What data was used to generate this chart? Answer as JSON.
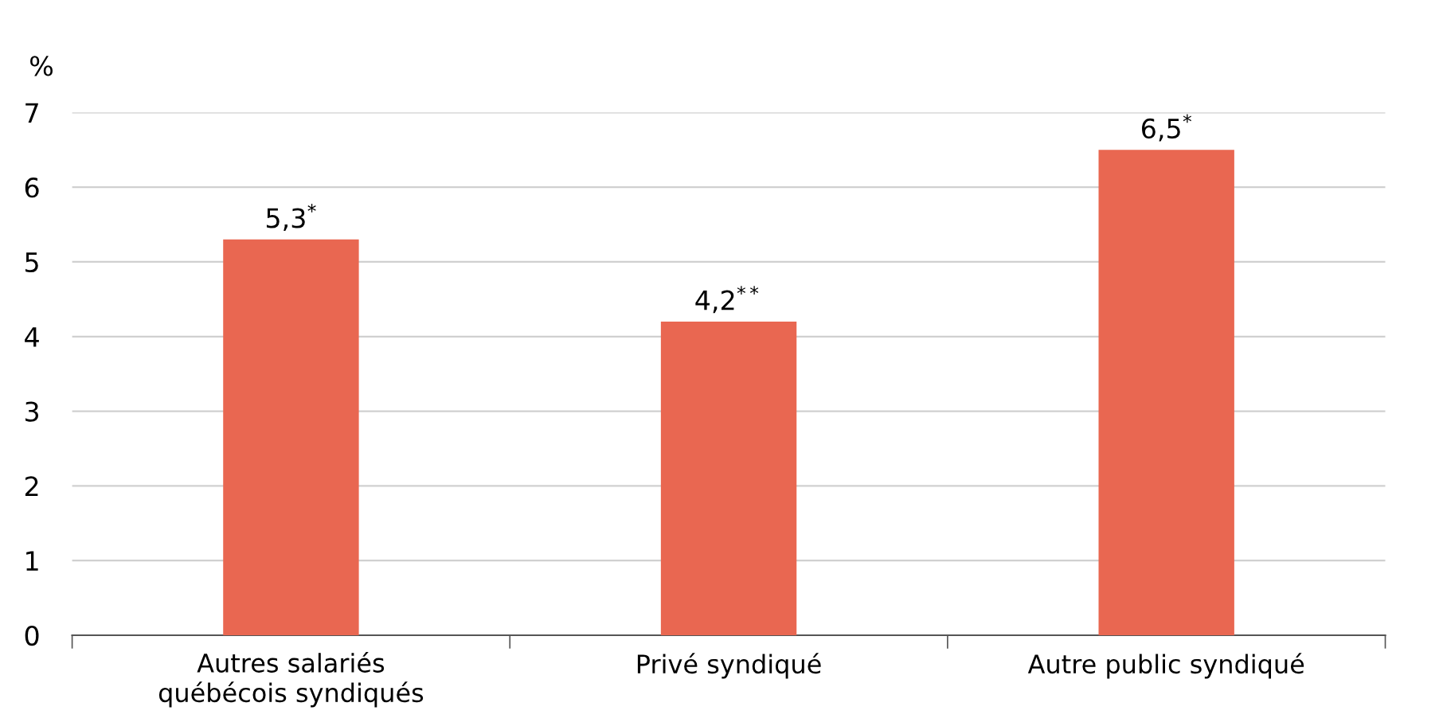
{
  "chart_data": {
    "type": "bar",
    "ylabel": "%",
    "categories": [
      "Autres salariés\nquébécois syndiqués",
      "Privé syndiqué",
      "Autre public syndiqué"
    ],
    "values": [
      5.3,
      4.2,
      6.5
    ],
    "value_labels": [
      "5,3$^{*}$",
      "4,2$^{**}$",
      "6,5$^{*}$"
    ],
    "color": "#e96751",
    "ylim": [
      0,
      7
    ],
    "yticks": [
      0,
      1,
      2,
      3,
      4,
      5,
      6,
      7
    ],
    "grid": "y"
  }
}
